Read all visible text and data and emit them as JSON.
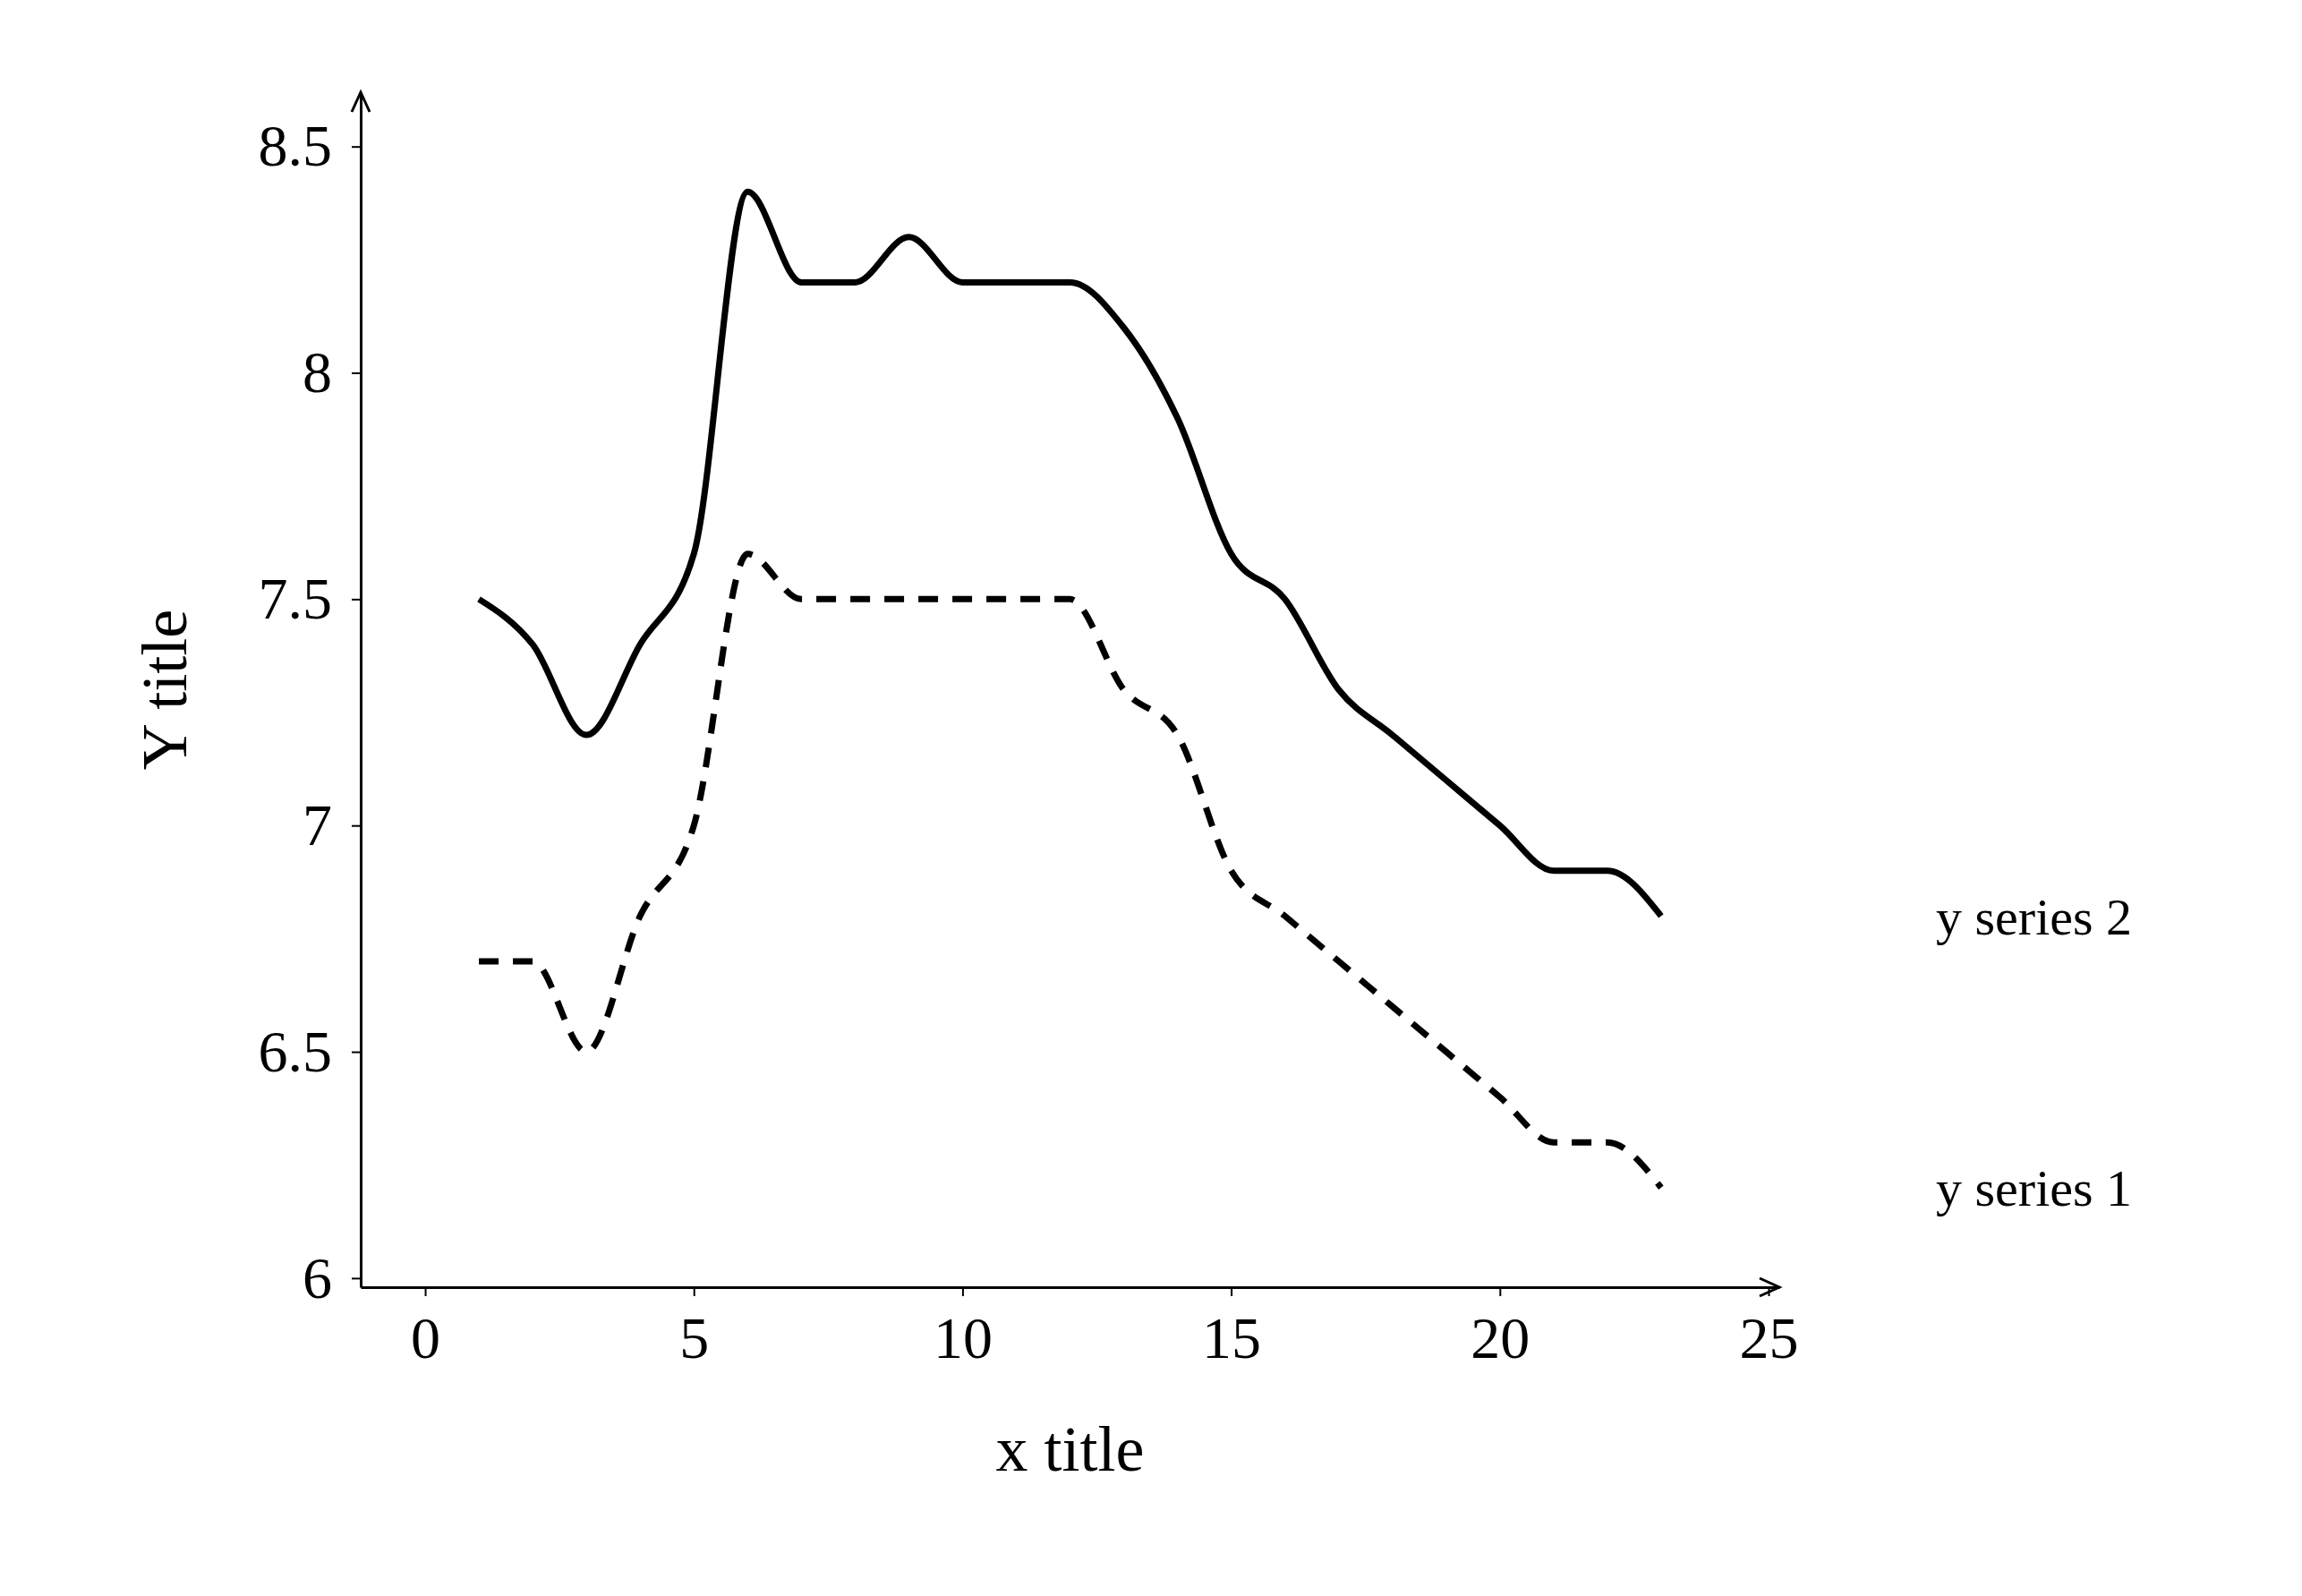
{
  "chart_data": {
    "type": "line",
    "xlabel": "x title",
    "ylabel": "Y title",
    "x": [
      1,
      2,
      3,
      4,
      5,
      6,
      7,
      8,
      9,
      10,
      11,
      12,
      13,
      14,
      15,
      16,
      17,
      18,
      19,
      20,
      21,
      22,
      23
    ],
    "series": [
      {
        "name": "y series 1",
        "color": "#000000",
        "line_style": "dashed",
        "values": [
          6.7,
          6.7,
          6.5,
          6.8,
          7.0,
          7.6,
          7.5,
          7.5,
          7.5,
          7.5,
          7.5,
          7.5,
          7.3,
          7.2,
          6.9,
          6.8,
          6.7,
          6.6,
          6.5,
          6.4,
          6.3,
          6.3,
          6.2
        ]
      },
      {
        "name": "y series 2",
        "color": "#000000",
        "line_style": "solid",
        "values": [
          7.5,
          7.4,
          7.2,
          7.4,
          7.6,
          8.4,
          8.2,
          8.2,
          8.3,
          8.2,
          8.2,
          8.2,
          8.1,
          7.9,
          7.6,
          7.5,
          7.3,
          7.2,
          7.1,
          7.0,
          6.9,
          6.9,
          6.8
        ]
      }
    ],
    "xlim": [
      -1.2,
      25.2
    ],
    "ylim": [
      5.98,
      8.62
    ],
    "xticks": [
      0,
      5,
      10,
      15,
      20,
      25
    ],
    "yticks": [
      6,
      6.5,
      7,
      7.5,
      8,
      8.5
    ],
    "grid": false,
    "marker": "none"
  }
}
